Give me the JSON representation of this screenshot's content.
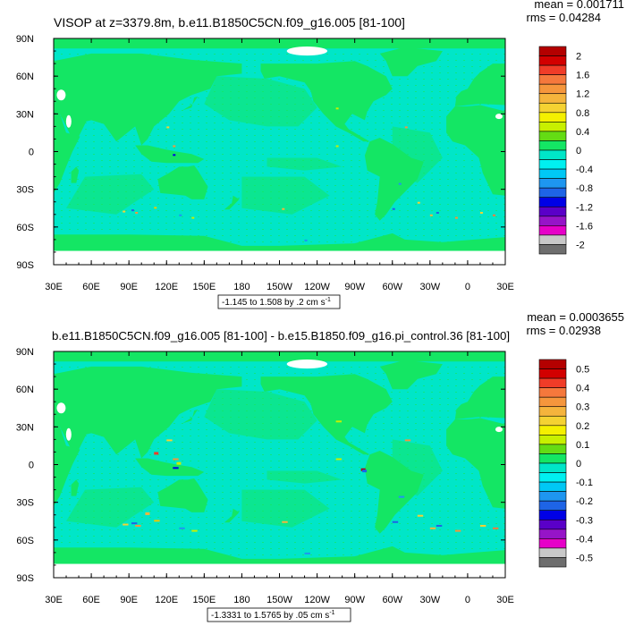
{
  "panels": [
    {
      "title": "VISOP at z=3379.8m, b.e11.B1850C5CN.f09_g16.005 [81-100]",
      "mean_text": "mean = 0.001711",
      "rms_text": "rms = 0.04284",
      "range_text": "-1.145 to 1.508 by .2 cm s",
      "range_sup": "-1",
      "colorbar_labels": [
        "2",
        "1.6",
        "1.2",
        "0.8",
        "0.4",
        "0",
        "-0.4",
        "-0.8",
        "-1.2",
        "-1.6",
        "-2"
      ]
    },
    {
      "title": "b.e11.B1850C5CN.f09_g16.005 [81-100] - b.e15.B1850.f09_g16.pi_control.36 [81-100]",
      "mean_text": "mean = 0.0003655",
      "rms_text": "rms = 0.02938",
      "range_text": "-1.3331 to 1.5765 by .05 cm s",
      "range_sup": "-1",
      "colorbar_labels": [
        "0.5",
        "0.4",
        "0.3",
        "0.2",
        "0.1",
        "0",
        "-0.1",
        "-0.2",
        "-0.3",
        "-0.4",
        "-0.5"
      ]
    }
  ],
  "chart_data": [
    {
      "type": "heatmap",
      "title": "VISOP at z=3379.8m, b.e11.B1850C5CN.f09_g16.005 [81-100]",
      "x_ticks": [
        "30E",
        "60E",
        "90E",
        "120E",
        "150E",
        "180",
        "150W",
        "120W",
        "90W",
        "60W",
        "30W",
        "0",
        "30E"
      ],
      "y_ticks": [
        "90N",
        "60N",
        "30N",
        "0",
        "30S",
        "60S",
        "90S"
      ],
      "xlim": [
        30,
        390
      ],
      "ylim": [
        -90,
        90
      ],
      "colorbar": {
        "levels": [
          -2,
          -1.8,
          -1.6,
          -1.4,
          -1.2,
          -1.0,
          -0.8,
          -0.6,
          -0.4,
          -0.2,
          0,
          0.2,
          0.4,
          0.6,
          0.8,
          1.0,
          1.2,
          1.4,
          1.6,
          1.8,
          2
        ],
        "colors": [
          "#6e6e6e",
          "#c8c8c8",
          "#e600c8",
          "#9614c8",
          "#5a00c8",
          "#0000e6",
          "#1e64e6",
          "#1e96f0",
          "#00c8f5",
          "#00f0f0",
          "#00e6c8",
          "#14e664",
          "#64dc14",
          "#c8f000",
          "#f5f000",
          "#f5d232",
          "#f5b43c",
          "#f5963c",
          "#f5783c",
          "#f03c28",
          "#d20000",
          "#b40000"
        ]
      },
      "stats": {
        "mean": 0.001711,
        "rms": 0.04284,
        "min": -1.145,
        "max": 1.508,
        "interval": 0.2,
        "units": "cm s-1"
      }
    },
    {
      "type": "heatmap",
      "title": "b.e11.B1850C5CN.f09_g16.005 [81-100] - b.e15.B1850.f09_g16.pi_control.36 [81-100]",
      "x_ticks": [
        "30E",
        "60E",
        "90E",
        "120E",
        "150E",
        "180",
        "150W",
        "120W",
        "90W",
        "60W",
        "30W",
        "0",
        "30E"
      ],
      "y_ticks": [
        "90N",
        "60N",
        "30N",
        "0",
        "30S",
        "60S",
        "90S"
      ],
      "xlim": [
        30,
        390
      ],
      "ylim": [
        -90,
        90
      ],
      "colorbar": {
        "levels": [
          -0.5,
          -0.45,
          -0.4,
          -0.35,
          -0.3,
          -0.25,
          -0.2,
          -0.15,
          -0.1,
          -0.05,
          0,
          0.05,
          0.1,
          0.15,
          0.2,
          0.25,
          0.3,
          0.35,
          0.4,
          0.45,
          0.5
        ],
        "colors": [
          "#6e6e6e",
          "#c8c8c8",
          "#e600c8",
          "#9614c8",
          "#5a00c8",
          "#0000e6",
          "#1e64e6",
          "#1e96f0",
          "#00c8f5",
          "#00f0f0",
          "#00e6c8",
          "#14e664",
          "#64dc14",
          "#c8f000",
          "#f5f000",
          "#f5d232",
          "#f5b43c",
          "#f5963c",
          "#f5783c",
          "#f03c28",
          "#d20000",
          "#b40000"
        ]
      },
      "stats": {
        "mean": 0.0003655,
        "rms": 0.02938,
        "min": -1.3331,
        "max": 1.5765,
        "interval": 0.05,
        "units": "cm s-1"
      }
    }
  ]
}
